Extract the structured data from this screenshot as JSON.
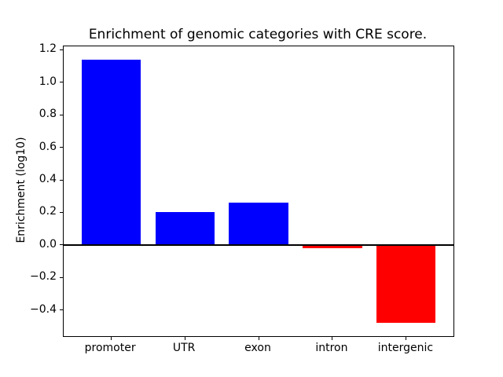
{
  "figure": {
    "background": "#ffffff"
  },
  "chart_data": {
    "type": "bar",
    "title": "Enrichment of genomic categories with CRE score.",
    "xlabel": "",
    "ylabel": "Enrichment (log10)",
    "categories": [
      "promoter",
      "UTR",
      "exon",
      "intron",
      "intergenic"
    ],
    "values": [
      1.14,
      0.2,
      0.26,
      -0.02,
      -0.48
    ],
    "bar_colors": [
      "#0000ff",
      "#0000ff",
      "#0000ff",
      "#ff0000",
      "#ff0000"
    ],
    "positive_color": "#0000ff",
    "negative_color": "#ff0000",
    "bar_width": 0.8,
    "ylim": [
      -0.561,
      1.221
    ],
    "xlim": [
      -0.64,
      4.64
    ],
    "yticks": [
      1.2,
      1.0,
      0.8,
      0.6,
      0.4,
      0.2,
      0.0,
      -0.2,
      -0.4
    ],
    "ytick_labels": [
      "1.2",
      "1.0",
      "0.8",
      "0.6",
      "0.4",
      "0.2",
      "0.0",
      "−0.2",
      "−0.4"
    ],
    "grid": false,
    "legend": null,
    "zero_line": true,
    "axis_color": "#000000",
    "text_color": "#000000"
  }
}
